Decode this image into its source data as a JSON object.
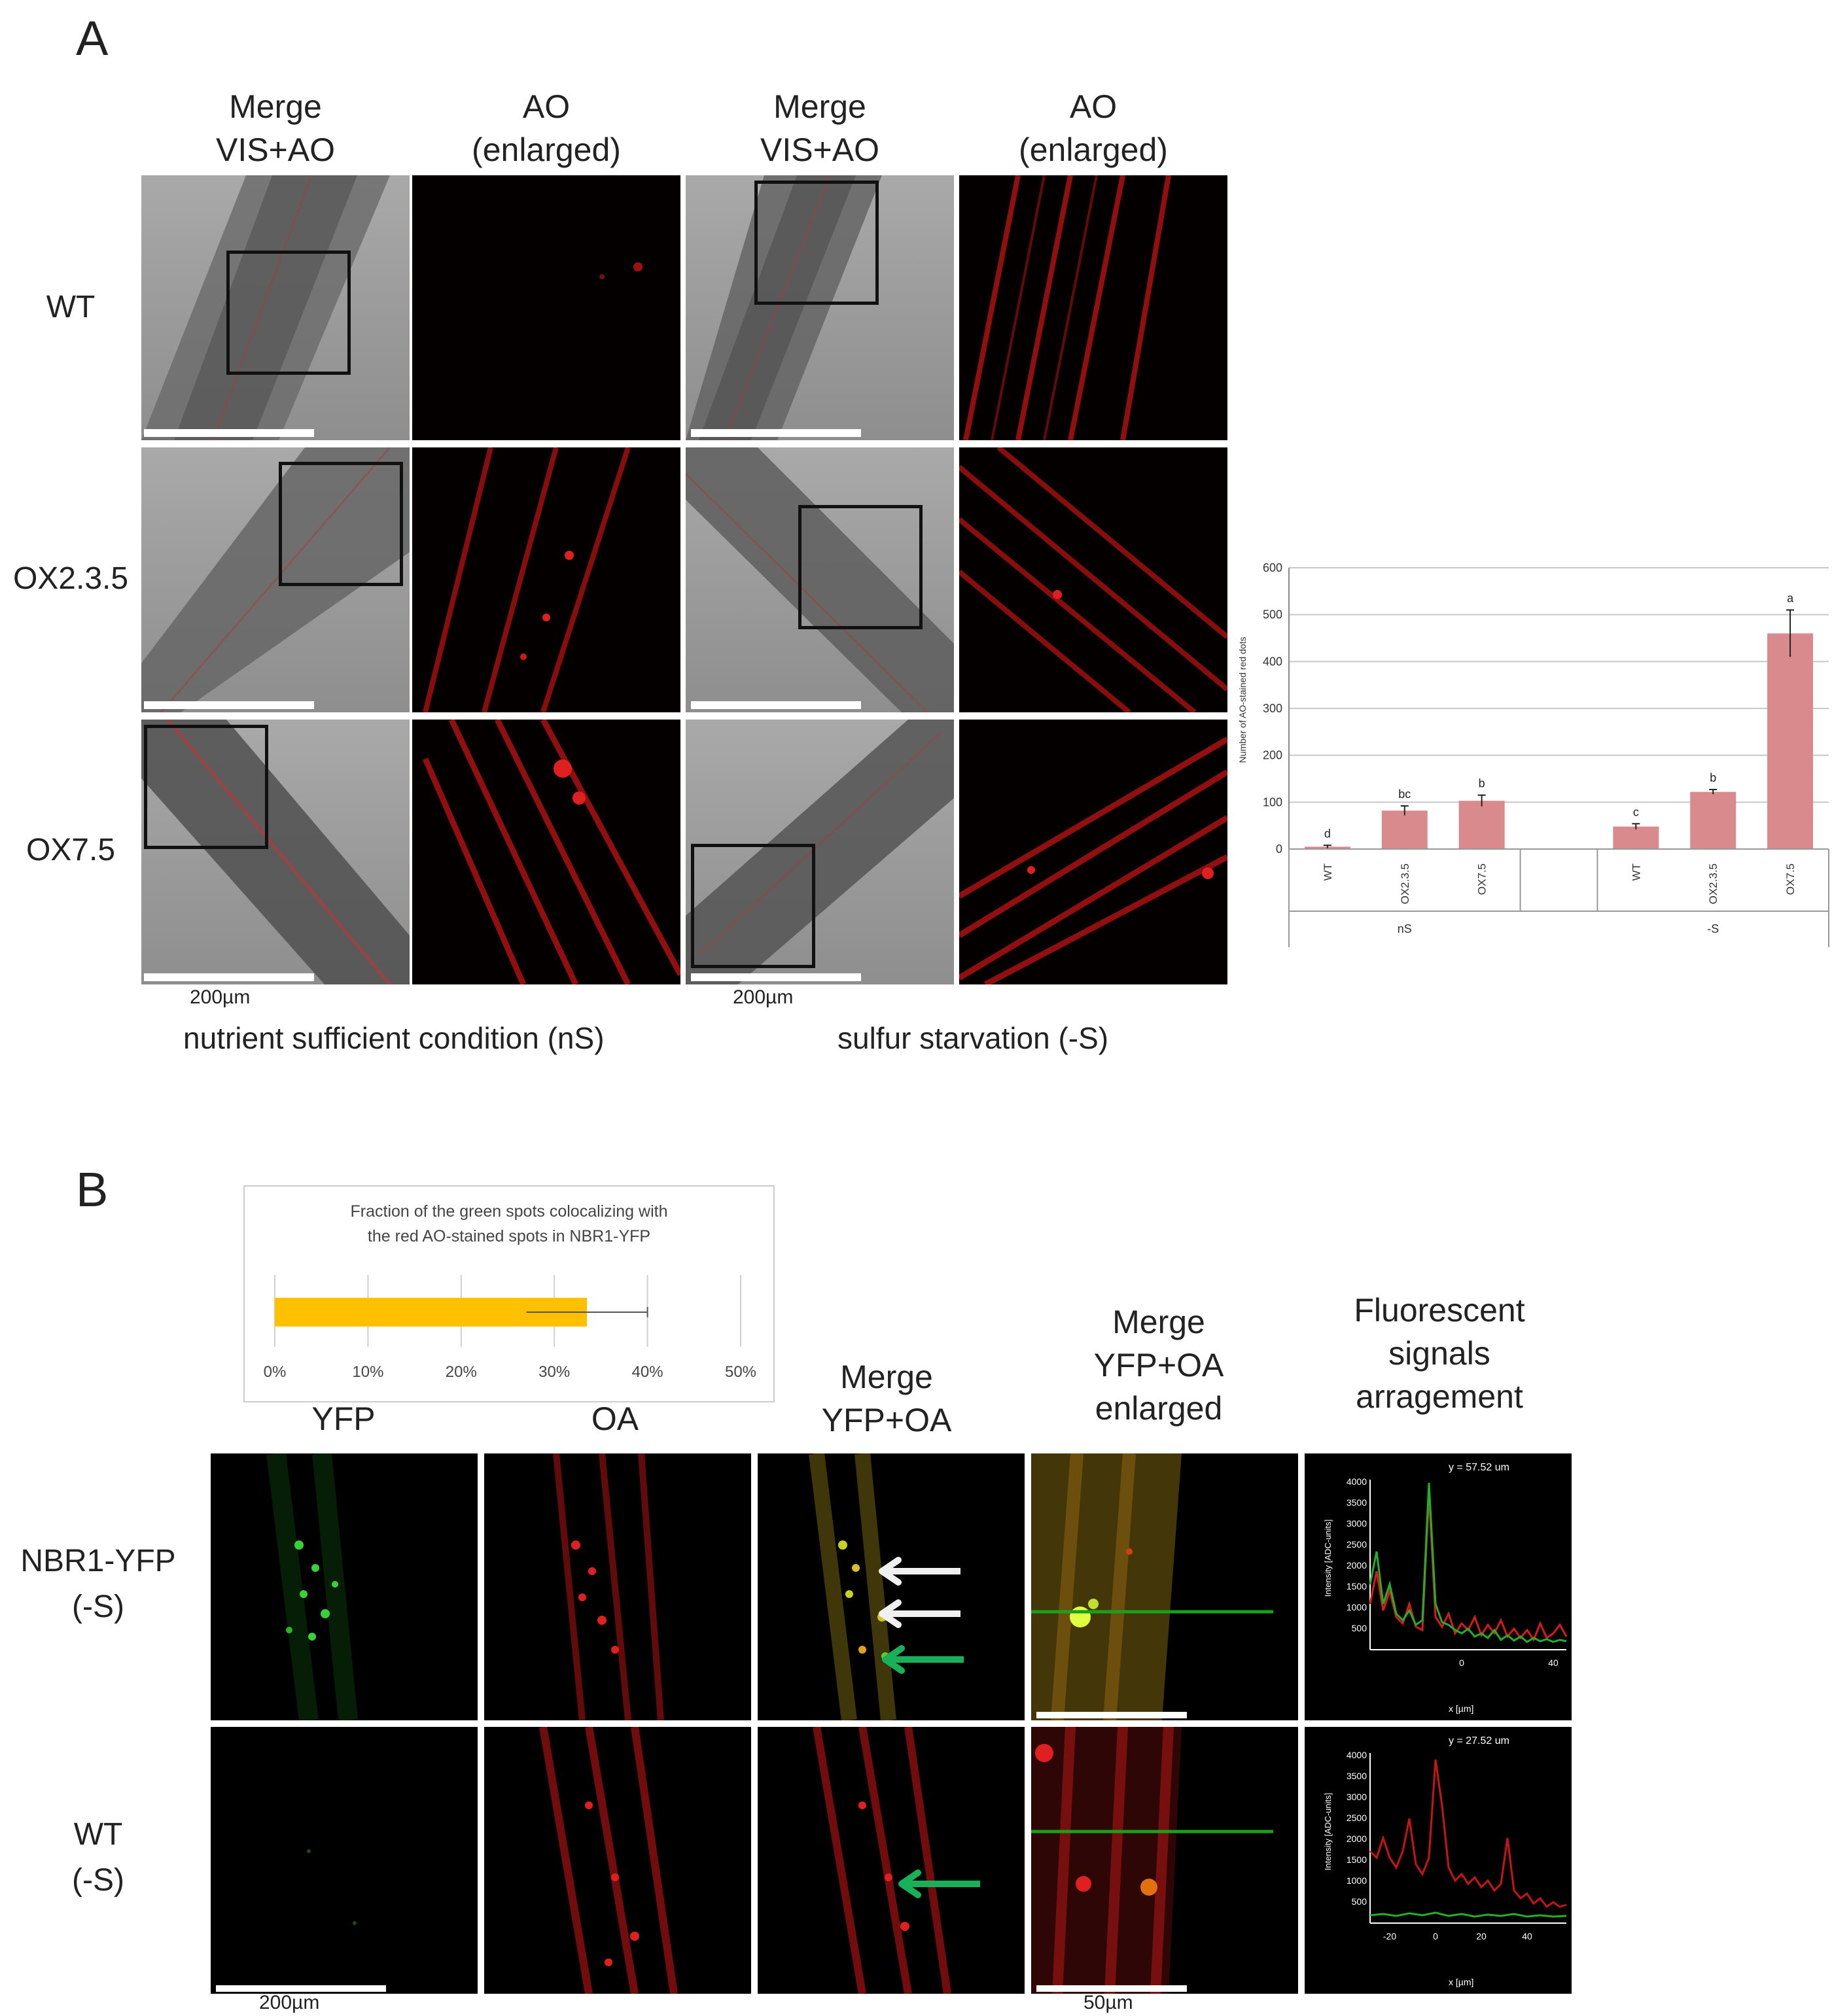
{
  "panel_a": {
    "letter": "A",
    "col_headers": [
      "Merge\nVIS+AO",
      "AO\n(enlarged)",
      "Merge\nVIS+AO",
      "AO\n(enlarged)"
    ],
    "row_headers": [
      "WT",
      "OX2.3.5",
      "OX7.5"
    ],
    "scale_labels": [
      "200µm",
      "200µm"
    ],
    "conditions": [
      "nutrient sufficient condition (nS)",
      "sulfur starvation (-S)"
    ]
  },
  "panel_b": {
    "letter": "B",
    "col_headers": [
      "YFP",
      "OA",
      "Merge\nYFP+OA",
      "Merge\nYFP+OA\nenlarged",
      "Fluorescent\nsignals\narragement"
    ],
    "row_headers": [
      "NBR1-YFP\n(-S)",
      "WT\n(-S)"
    ],
    "scale_labels": [
      "200µm",
      "50µm"
    ],
    "profile_titles": [
      "y = 57.52 um",
      "y = 27.52 um"
    ],
    "profile_ylabel": "Intensity [ADC-units]",
    "profile_xlabel": "x [µm]",
    "profile_yticks": [
      4000,
      3500,
      3000,
      2500,
      2000,
      1500,
      1000,
      500
    ],
    "profile1_xticks": [
      "0",
      "40"
    ],
    "profile2_xticks": [
      "-20",
      "0",
      "20",
      "40"
    ]
  },
  "colors": {
    "red": "#e01010",
    "green": "#22c02a",
    "bar_pink": "#d98a8c",
    "bar_orange": "#ffc000"
  },
  "chart_data": [
    {
      "type": "bar",
      "ylabel": "Number of AO-stained red dots",
      "ylim": [
        0,
        600
      ],
      "yticks": [
        0,
        100,
        200,
        300,
        400,
        500,
        600
      ],
      "groups": [
        "nS",
        "-S"
      ],
      "categories": [
        "WT",
        "OX2.3.5",
        "OX7.5",
        "WT",
        "OX2.3.5",
        "OX7.5"
      ],
      "values": [
        5,
        82,
        103,
        48,
        122,
        460
      ],
      "errors": [
        3,
        10,
        12,
        6,
        5,
        50
      ],
      "letters": [
        "d",
        "bc",
        "b",
        "c",
        "b",
        "a"
      ],
      "grid": true
    },
    {
      "type": "bar",
      "orientation": "horizontal",
      "title": "Fraction of the green spots colocalizing with the red AO-stained spots in NBR1-YFP",
      "values": [
        33.5
      ],
      "errors": [
        6.5
      ],
      "xlim": [
        0,
        50
      ],
      "xticks": [
        "0%",
        "10%",
        "20%",
        "30%",
        "40%",
        "50%"
      ],
      "grid": true
    }
  ]
}
